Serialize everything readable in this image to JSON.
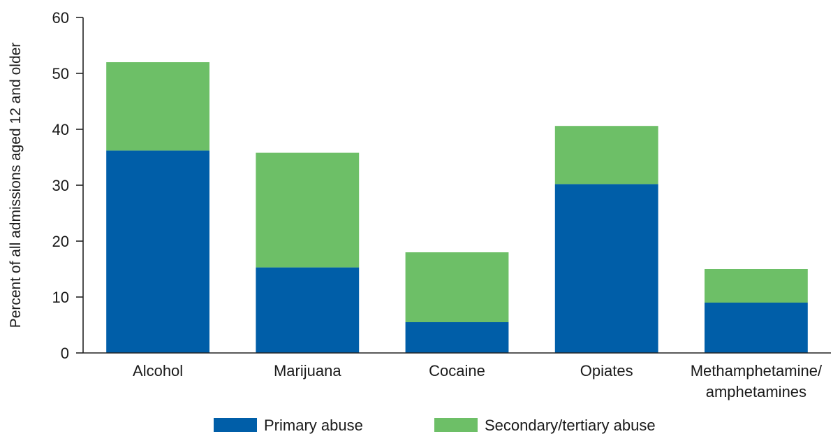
{
  "chart_data": {
    "type": "bar",
    "stacked": true,
    "title": "",
    "xlabel": "",
    "ylabel": "Percent of all admissions aged 12 and older",
    "ylim": [
      0,
      60
    ],
    "yticks": [
      0,
      10,
      20,
      30,
      40,
      50,
      60
    ],
    "grid": false,
    "legend_position": "bottom",
    "categories": [
      [
        "Alcohol"
      ],
      [
        "Marijuana"
      ],
      [
        "Cocaine"
      ],
      [
        "Opiates"
      ],
      [
        "Methamphetamine/",
        "amphetamines"
      ]
    ],
    "series": [
      {
        "name": "Primary abuse",
        "color": "#005ea8",
        "values": [
          36.2,
          15.3,
          5.5,
          30.2,
          9.0
        ]
      },
      {
        "name": "Secondary/tertiary abuse",
        "color": "#6dbf67",
        "values": [
          15.8,
          20.5,
          12.5,
          10.4,
          6.0
        ]
      }
    ]
  }
}
